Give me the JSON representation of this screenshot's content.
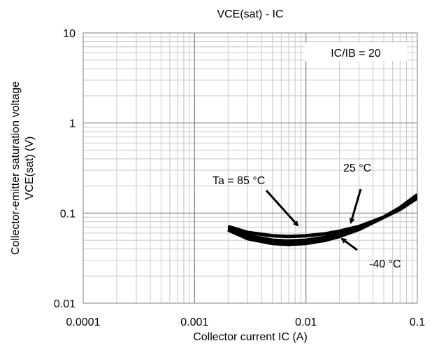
{
  "chart_data": {
    "type": "line",
    "title": "VCE(sat) - IC",
    "xlabel": "Collector current IC (A)",
    "ylabel_lines": [
      "Collector-emitter saturation voltage",
      "VCE(sat) (V)"
    ],
    "x_scale": "log",
    "y_scale": "log",
    "xlim": [
      0.0001,
      0.1
    ],
    "ylim": [
      0.01,
      10
    ],
    "x_ticks": [
      "0.0001",
      "0.001",
      "0.01",
      "0.1"
    ],
    "y_ticks": [
      "0.01",
      "0.1",
      "1",
      "10"
    ],
    "grid": true,
    "condition_label": "IC/IB = 20",
    "series": [
      {
        "name": "Ta = 85 °C",
        "x": [
          0.002,
          0.003,
          0.005,
          0.007,
          0.01,
          0.015,
          0.02,
          0.03,
          0.05,
          0.07,
          0.1
        ],
        "y": [
          0.071,
          0.061,
          0.056,
          0.055,
          0.056,
          0.059,
          0.063,
          0.071,
          0.09,
          0.11,
          0.147
        ]
      },
      {
        "name": "25 °C",
        "x": [
          0.002,
          0.003,
          0.005,
          0.007,
          0.01,
          0.015,
          0.02,
          0.03,
          0.05,
          0.07,
          0.1
        ],
        "y": [
          0.068,
          0.056,
          0.05,
          0.049,
          0.05,
          0.054,
          0.059,
          0.069,
          0.09,
          0.113,
          0.152
        ]
      },
      {
        "name": "-40 °C",
        "x": [
          0.002,
          0.003,
          0.005,
          0.007,
          0.01,
          0.015,
          0.02,
          0.03,
          0.05,
          0.07,
          0.1
        ],
        "y": [
          0.065,
          0.052,
          0.046,
          0.045,
          0.046,
          0.05,
          0.055,
          0.066,
          0.09,
          0.115,
          0.16
        ]
      }
    ],
    "annotations": [
      {
        "text": "Ta = 85 °C",
        "points_to_series": "Ta = 85 °C"
      },
      {
        "text": "25 °C",
        "points_to_series": "25 °C"
      },
      {
        "text": "-40 °C",
        "points_to_series": "-40 °C"
      }
    ]
  }
}
